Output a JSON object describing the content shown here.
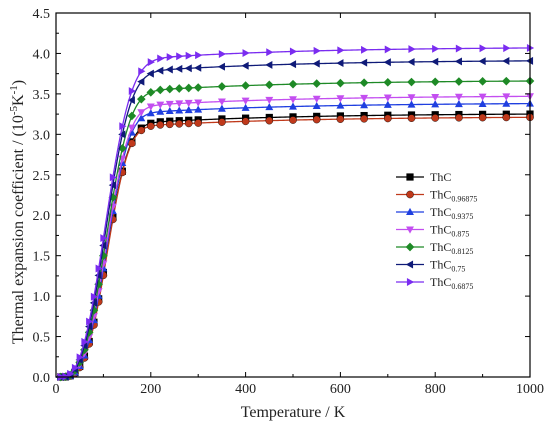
{
  "chart_data": {
    "type": "line",
    "xlabel": "Temperature / K",
    "ylabel_main": "Thermal expansion coefficient / (10",
    "ylabel_sup1": "-5",
    "ylabel_mid": "K",
    "ylabel_sup2": "-1",
    "ylabel_end": ")",
    "xlim": [
      0,
      1000
    ],
    "ylim": [
      0,
      4.5
    ],
    "xticks": [
      "0",
      "200",
      "400",
      "600",
      "800",
      "1000"
    ],
    "yticks": [
      "0.0",
      "0.5",
      "1.0",
      "1.5",
      "2.0",
      "2.5",
      "3.0",
      "3.5",
      "4.0",
      "4.5"
    ],
    "legend_position": "right",
    "series": [
      {
        "name": "ThC",
        "name_base": "ThC",
        "name_sub": "",
        "color": "#000000",
        "marker": "square",
        "asym": 3.26,
        "k": 3.1
      },
      {
        "name": "ThC0.96875",
        "name_base": "ThC",
        "name_sub": "0.96875",
        "color": "#c0391b",
        "marker": "circle",
        "asym": 3.22,
        "k": 3.2
      },
      {
        "name": "ThC0.9375",
        "name_base": "ThC",
        "name_sub": "0.9375",
        "color": "#1f3fe0",
        "marker": "triangle-up",
        "asym": 3.39,
        "k": 3.1
      },
      {
        "name": "ThC0.875",
        "name_base": "ThC",
        "name_sub": "0.875",
        "color": "#c34ef0",
        "marker": "triangle-down",
        "asym": 3.48,
        "k": 3.0
      },
      {
        "name": "ThC0.8125",
        "name_base": "ThC",
        "name_sub": "0.8125",
        "color": "#1e8a26",
        "marker": "diamond",
        "asym": 3.67,
        "k": 2.9
      },
      {
        "name": "ThC0.75",
        "name_base": "ThC",
        "name_sub": "0.75",
        "color": "#0f1a78",
        "marker": "triangle-left",
        "asym": 3.92,
        "k": 2.8
      },
      {
        "name": "ThC0.6875",
        "name_base": "ThC",
        "name_sub": "0.6875",
        "color": "#7a2cf0",
        "marker": "triangle-right",
        "asym": 4.08,
        "k": 2.7
      }
    ]
  }
}
